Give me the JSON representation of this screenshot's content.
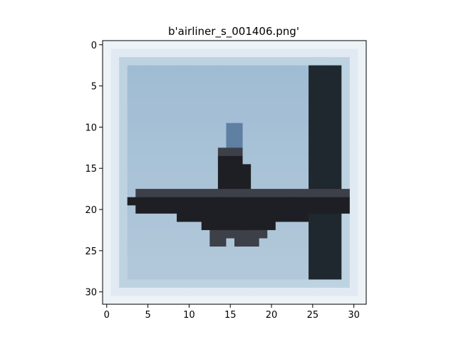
{
  "image": {
    "title": "b'airliner_s_001406.png'",
    "content": "pixelated 32x32 photo of an airliner seen head-on against a pale blue sky",
    "colors": {
      "sky": "#a6c3d8",
      "sky_top": "#9ebbd3",
      "sky_bottom": "#b5cadb",
      "border": "#e1eaf2",
      "border_outer": "#eef3f8",
      "aircraft": "#1e1f24",
      "aircraft_light": "#3d4048",
      "tail_highlight": "#5f7fa3"
    }
  },
  "axes": {
    "x_ticks": [
      "0",
      "5",
      "10",
      "15",
      "20",
      "25",
      "30"
    ],
    "y_ticks": [
      "0",
      "5",
      "10",
      "15",
      "20",
      "25",
      "30"
    ],
    "x_range": [
      -0.5,
      31.5
    ],
    "y_range": [
      -0.5,
      31.5
    ],
    "y_inverted": true
  }
}
